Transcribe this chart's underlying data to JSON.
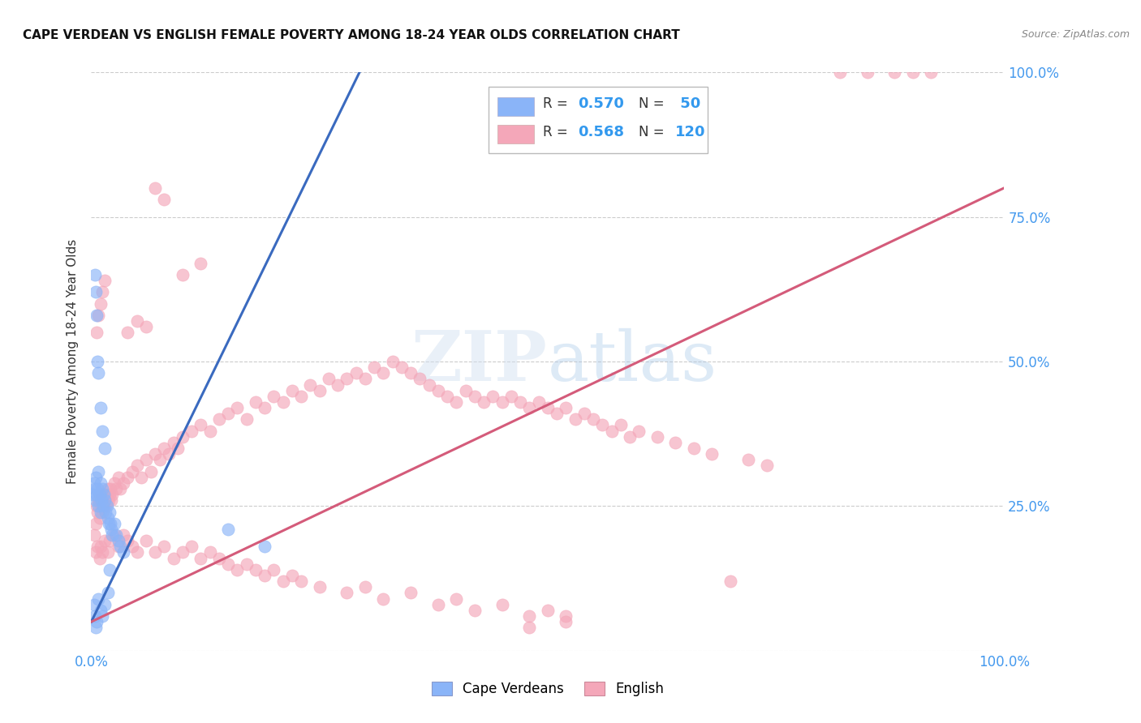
{
  "title": "CAPE VERDEAN VS ENGLISH FEMALE POVERTY AMONG 18-24 YEAR OLDS CORRELATION CHART",
  "source": "Source: ZipAtlas.com",
  "ylabel": "Female Poverty Among 18-24 Year Olds",
  "xlim": [
    0,
    1
  ],
  "ylim": [
    0,
    1
  ],
  "cv_color": "#8ab4f8",
  "en_color": "#f4a7b9",
  "cv_line_color": "#3a6abf",
  "en_line_color": "#d45b7a",
  "watermark_zip": "ZIP",
  "watermark_atlas": "atlas",
  "background_color": "#ffffff",
  "grid_color": "#cccccc",
  "tick_color": "#4499ee",
  "cv_line_x": [
    0.0,
    0.3
  ],
  "cv_line_y": [
    0.05,
    1.02
  ],
  "en_line_x": [
    0.0,
    1.0
  ],
  "en_line_y": [
    0.05,
    0.8
  ],
  "cv_scatter": [
    [
      0.002,
      0.27
    ],
    [
      0.003,
      0.29
    ],
    [
      0.004,
      0.28
    ],
    [
      0.005,
      0.3
    ],
    [
      0.005,
      0.26
    ],
    [
      0.006,
      0.27
    ],
    [
      0.007,
      0.28
    ],
    [
      0.008,
      0.25
    ],
    [
      0.008,
      0.31
    ],
    [
      0.009,
      0.27
    ],
    [
      0.01,
      0.29
    ],
    [
      0.01,
      0.24
    ],
    [
      0.011,
      0.26
    ],
    [
      0.012,
      0.28
    ],
    [
      0.013,
      0.25
    ],
    [
      0.014,
      0.27
    ],
    [
      0.015,
      0.26
    ],
    [
      0.016,
      0.24
    ],
    [
      0.017,
      0.25
    ],
    [
      0.018,
      0.23
    ],
    [
      0.019,
      0.22
    ],
    [
      0.02,
      0.24
    ],
    [
      0.021,
      0.22
    ],
    [
      0.022,
      0.21
    ],
    [
      0.023,
      0.2
    ],
    [
      0.025,
      0.22
    ],
    [
      0.027,
      0.2
    ],
    [
      0.03,
      0.19
    ],
    [
      0.032,
      0.18
    ],
    [
      0.035,
      0.17
    ],
    [
      0.004,
      0.65
    ],
    [
      0.005,
      0.62
    ],
    [
      0.006,
      0.58
    ],
    [
      0.007,
      0.5
    ],
    [
      0.008,
      0.48
    ],
    [
      0.01,
      0.42
    ],
    [
      0.012,
      0.38
    ],
    [
      0.015,
      0.35
    ],
    [
      0.003,
      0.08
    ],
    [
      0.004,
      0.06
    ],
    [
      0.005,
      0.04
    ],
    [
      0.006,
      0.05
    ],
    [
      0.008,
      0.09
    ],
    [
      0.01,
      0.07
    ],
    [
      0.012,
      0.06
    ],
    [
      0.015,
      0.08
    ],
    [
      0.018,
      0.1
    ],
    [
      0.02,
      0.14
    ],
    [
      0.15,
      0.21
    ],
    [
      0.19,
      0.18
    ]
  ],
  "en_scatter": [
    [
      0.003,
      0.2
    ],
    [
      0.005,
      0.22
    ],
    [
      0.006,
      0.25
    ],
    [
      0.007,
      0.24
    ],
    [
      0.008,
      0.26
    ],
    [
      0.009,
      0.23
    ],
    [
      0.01,
      0.25
    ],
    [
      0.011,
      0.27
    ],
    [
      0.012,
      0.24
    ],
    [
      0.013,
      0.26
    ],
    [
      0.014,
      0.25
    ],
    [
      0.015,
      0.27
    ],
    [
      0.016,
      0.25
    ],
    [
      0.017,
      0.26
    ],
    [
      0.018,
      0.28
    ],
    [
      0.019,
      0.26
    ],
    [
      0.02,
      0.27
    ],
    [
      0.021,
      0.28
    ],
    [
      0.022,
      0.26
    ],
    [
      0.023,
      0.27
    ],
    [
      0.025,
      0.29
    ],
    [
      0.027,
      0.28
    ],
    [
      0.03,
      0.3
    ],
    [
      0.032,
      0.28
    ],
    [
      0.035,
      0.29
    ],
    [
      0.04,
      0.3
    ],
    [
      0.045,
      0.31
    ],
    [
      0.05,
      0.32
    ],
    [
      0.055,
      0.3
    ],
    [
      0.06,
      0.33
    ],
    [
      0.065,
      0.31
    ],
    [
      0.07,
      0.34
    ],
    [
      0.075,
      0.33
    ],
    [
      0.08,
      0.35
    ],
    [
      0.085,
      0.34
    ],
    [
      0.09,
      0.36
    ],
    [
      0.095,
      0.35
    ],
    [
      0.1,
      0.37
    ],
    [
      0.11,
      0.38
    ],
    [
      0.12,
      0.39
    ],
    [
      0.13,
      0.38
    ],
    [
      0.14,
      0.4
    ],
    [
      0.15,
      0.41
    ],
    [
      0.16,
      0.42
    ],
    [
      0.17,
      0.4
    ],
    [
      0.18,
      0.43
    ],
    [
      0.19,
      0.42
    ],
    [
      0.2,
      0.44
    ],
    [
      0.21,
      0.43
    ],
    [
      0.22,
      0.45
    ],
    [
      0.23,
      0.44
    ],
    [
      0.24,
      0.46
    ],
    [
      0.25,
      0.45
    ],
    [
      0.26,
      0.47
    ],
    [
      0.27,
      0.46
    ],
    [
      0.28,
      0.47
    ],
    [
      0.29,
      0.48
    ],
    [
      0.3,
      0.47
    ],
    [
      0.31,
      0.49
    ],
    [
      0.32,
      0.48
    ],
    [
      0.33,
      0.5
    ],
    [
      0.34,
      0.49
    ],
    [
      0.35,
      0.48
    ],
    [
      0.36,
      0.47
    ],
    [
      0.37,
      0.46
    ],
    [
      0.38,
      0.45
    ],
    [
      0.39,
      0.44
    ],
    [
      0.4,
      0.43
    ],
    [
      0.41,
      0.45
    ],
    [
      0.42,
      0.44
    ],
    [
      0.43,
      0.43
    ],
    [
      0.44,
      0.44
    ],
    [
      0.45,
      0.43
    ],
    [
      0.46,
      0.44
    ],
    [
      0.47,
      0.43
    ],
    [
      0.48,
      0.42
    ],
    [
      0.49,
      0.43
    ],
    [
      0.5,
      0.42
    ],
    [
      0.51,
      0.41
    ],
    [
      0.52,
      0.42
    ],
    [
      0.53,
      0.4
    ],
    [
      0.54,
      0.41
    ],
    [
      0.55,
      0.4
    ],
    [
      0.56,
      0.39
    ],
    [
      0.57,
      0.38
    ],
    [
      0.58,
      0.39
    ],
    [
      0.59,
      0.37
    ],
    [
      0.6,
      0.38
    ],
    [
      0.62,
      0.37
    ],
    [
      0.64,
      0.36
    ],
    [
      0.66,
      0.35
    ],
    [
      0.68,
      0.34
    ],
    [
      0.7,
      0.12
    ],
    [
      0.72,
      0.33
    ],
    [
      0.74,
      0.32
    ],
    [
      0.006,
      0.55
    ],
    [
      0.008,
      0.58
    ],
    [
      0.01,
      0.6
    ],
    [
      0.012,
      0.62
    ],
    [
      0.015,
      0.64
    ],
    [
      0.04,
      0.55
    ],
    [
      0.05,
      0.57
    ],
    [
      0.06,
      0.56
    ],
    [
      0.07,
      0.8
    ],
    [
      0.08,
      0.78
    ],
    [
      0.1,
      0.65
    ],
    [
      0.12,
      0.67
    ],
    [
      0.005,
      0.17
    ],
    [
      0.007,
      0.18
    ],
    [
      0.009,
      0.16
    ],
    [
      0.01,
      0.18
    ],
    [
      0.012,
      0.17
    ],
    [
      0.015,
      0.19
    ],
    [
      0.018,
      0.17
    ],
    [
      0.02,
      0.19
    ],
    [
      0.025,
      0.2
    ],
    [
      0.03,
      0.18
    ],
    [
      0.035,
      0.2
    ],
    [
      0.04,
      0.19
    ],
    [
      0.045,
      0.18
    ],
    [
      0.05,
      0.17
    ],
    [
      0.06,
      0.19
    ],
    [
      0.07,
      0.17
    ],
    [
      0.08,
      0.18
    ],
    [
      0.09,
      0.16
    ],
    [
      0.1,
      0.17
    ],
    [
      0.11,
      0.18
    ],
    [
      0.12,
      0.16
    ],
    [
      0.13,
      0.17
    ],
    [
      0.14,
      0.16
    ],
    [
      0.15,
      0.15
    ],
    [
      0.16,
      0.14
    ],
    [
      0.17,
      0.15
    ],
    [
      0.18,
      0.14
    ],
    [
      0.19,
      0.13
    ],
    [
      0.2,
      0.14
    ],
    [
      0.21,
      0.12
    ],
    [
      0.22,
      0.13
    ],
    [
      0.23,
      0.12
    ],
    [
      0.25,
      0.11
    ],
    [
      0.28,
      0.1
    ],
    [
      0.3,
      0.11
    ],
    [
      0.32,
      0.09
    ],
    [
      0.35,
      0.1
    ],
    [
      0.38,
      0.08
    ],
    [
      0.4,
      0.09
    ],
    [
      0.42,
      0.07
    ],
    [
      0.45,
      0.08
    ],
    [
      0.48,
      0.06
    ],
    [
      0.5,
      0.07
    ],
    [
      0.52,
      0.06
    ],
    [
      0.48,
      0.04
    ],
    [
      0.82,
      1.0
    ],
    [
      0.85,
      1.0
    ],
    [
      0.88,
      1.0
    ],
    [
      0.9,
      1.0
    ],
    [
      0.92,
      1.0
    ],
    [
      0.52,
      0.05
    ]
  ]
}
